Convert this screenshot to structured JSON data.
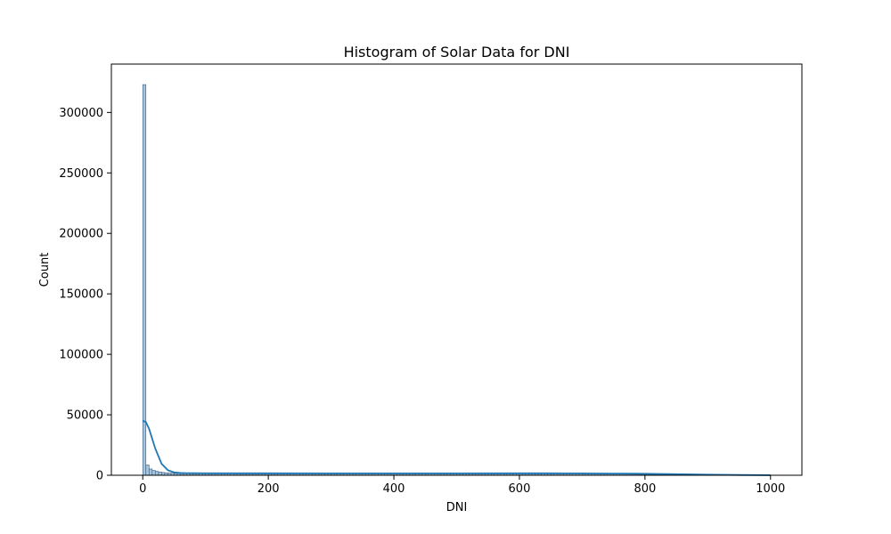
{
  "chart_data": {
    "type": "bar",
    "title": "Histogram of Solar Data for DNI",
    "xlabel": "DNI",
    "ylabel": "Count",
    "xlim": [
      -50,
      1050
    ],
    "ylim": [
      0,
      340000
    ],
    "x_ticks": [
      0,
      200,
      400,
      600,
      800,
      1000
    ],
    "y_ticks": [
      0,
      50000,
      100000,
      150000,
      200000,
      250000,
      300000
    ],
    "x_tick_labels": [
      "0",
      "200",
      "400",
      "600",
      "800",
      "1000"
    ],
    "y_tick_labels": [
      "0",
      "50000",
      "100000",
      "150000",
      "200000",
      "250000",
      "300000"
    ],
    "bin_width": 5,
    "bin_start": 0,
    "counts": [
      323000,
      8500,
      5200,
      4000,
      3200,
      2700,
      2300,
      2000,
      1800,
      1700,
      1600,
      1550,
      1500,
      1500,
      1500,
      1480,
      1480,
      1470,
      1470,
      1460,
      1460,
      1460,
      1460,
      1460,
      1460,
      1460,
      1460,
      1460,
      1460,
      1460,
      1460,
      1460,
      1460,
      1460,
      1460,
      1460,
      1460,
      1460,
      1460,
      1460,
      1460,
      1460,
      1460,
      1460,
      1460,
      1460,
      1460,
      1460,
      1460,
      1460,
      1460,
      1460,
      1460,
      1460,
      1460,
      1460,
      1460,
      1460,
      1460,
      1460,
      1460,
      1460,
      1460,
      1460,
      1460,
      1460,
      1460,
      1460,
      1460,
      1460,
      1460,
      1460,
      1460,
      1460,
      1460,
      1460,
      1460,
      1460,
      1460,
      1460,
      1460,
      1460,
      1460,
      1460,
      1460,
      1460,
      1460,
      1460,
      1460,
      1460,
      1460,
      1460,
      1460,
      1460,
      1460,
      1460,
      1460,
      1460,
      1460,
      1460,
      1460,
      1460,
      1460,
      1460,
      1460,
      1460,
      1460,
      1460,
      1460,
      1460,
      1460,
      1460,
      1460,
      1460,
      1460,
      1460,
      1460,
      1460,
      1460,
      1460,
      1460,
      1460,
      1460,
      1460,
      1460,
      1460,
      1460,
      1460,
      1460,
      1460,
      1460,
      1460,
      1460,
      1460,
      1460,
      1460,
      1460,
      1460,
      1450,
      1440,
      1420,
      1400,
      1380,
      1350,
      1320,
      1280,
      1240,
      1200,
      1160,
      1120,
      1080,
      1040,
      1000,
      960,
      920,
      880,
      840,
      800,
      760,
      720,
      680,
      640,
      600,
      560,
      520,
      480,
      440,
      400,
      360,
      320,
      280,
      240,
      200,
      160,
      130,
      100,
      80,
      60,
      40,
      30,
      20,
      10,
      5,
      3,
      2,
      1
    ],
    "kde": {
      "x": [
        0,
        5,
        10,
        20,
        30,
        40,
        50,
        60,
        70,
        80,
        100,
        150,
        200,
        300,
        400,
        500,
        600,
        650,
        700,
        750,
        780,
        800,
        850,
        900,
        950,
        1000
      ],
      "y": [
        45000,
        44000,
        38500,
        22000,
        9500,
        4200,
        2400,
        1900,
        1750,
        1700,
        1650,
        1620,
        1600,
        1580,
        1570,
        1570,
        1600,
        1620,
        1560,
        1380,
        1350,
        1250,
        900,
        500,
        220,
        60
      ]
    },
    "colors": {
      "bar_fill": "#a5c4dd",
      "bar_edge": "#37597a",
      "kde_line": "#1f77b4"
    },
    "grid": false,
    "legend": "none"
  }
}
